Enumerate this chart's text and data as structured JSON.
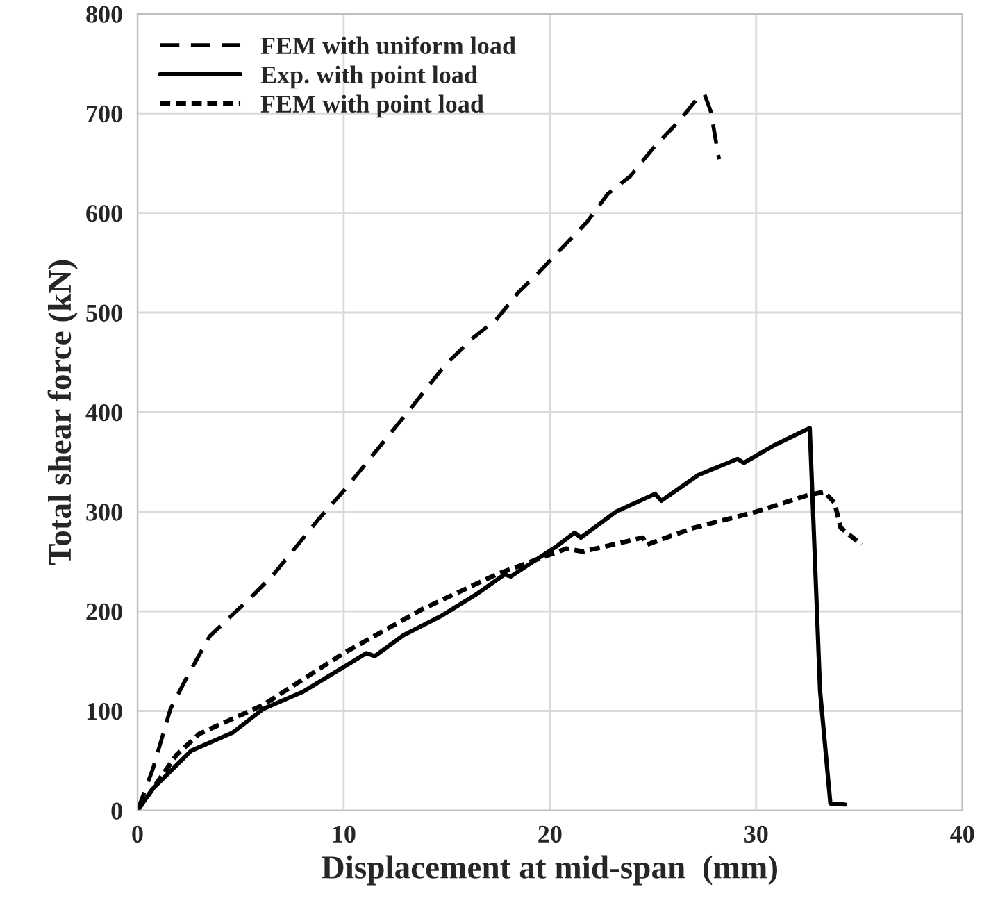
{
  "chart_data": {
    "type": "line",
    "xlabel": "Displacement at mid-span  (mm)",
    "ylabel": "Total shear force (kN)",
    "xlim": [
      0,
      40
    ],
    "ylim": [
      0,
      800
    ],
    "xticks": [
      0,
      10,
      20,
      30,
      40
    ],
    "yticks": [
      0,
      100,
      200,
      300,
      400,
      500,
      600,
      700,
      800
    ],
    "grid": true,
    "legend": "top left",
    "marker": "none",
    "series": [
      {
        "name": "FEM with uniform load",
        "color": "#000000",
        "line_style": "dashed",
        "x": [
          0,
          0.75,
          1.6,
          2.4,
          3.5,
          5.5,
          6.6,
          7.7,
          8.8,
          10,
          11.1,
          12.2,
          13.3,
          14.9,
          16.3,
          17.4,
          18.5,
          19.4,
          20.5,
          21.8,
          22.8,
          23.9,
          25,
          26.2,
          27.2,
          27.5,
          27.8,
          28.2
        ],
        "values": [
          0,
          42,
          102,
          134,
          175,
          214,
          237,
          265,
          293,
          321,
          349,
          377,
          405,
          447,
          475,
          493,
          521,
          539,
          563,
          591,
          619,
          637,
          665,
          691,
          716,
          719,
          702,
          654
        ]
      },
      {
        "name": "Exp. with point load",
        "color": "#000000",
        "line_style": "solid",
        "x": [
          0,
          0.75,
          2.6,
          4.6,
          6.1,
          8.0,
          10,
          11.1,
          11.5,
          12.9,
          14.7,
          16.5,
          17.8,
          18.1,
          20.3,
          21.2,
          21.5,
          23.2,
          25.1,
          25.4,
          27.2,
          29.1,
          29.4,
          30.9,
          32.6,
          33.1,
          33.6,
          34.3
        ],
        "values": [
          0,
          22,
          60,
          78,
          102,
          119,
          144,
          158,
          155,
          176,
          195,
          218,
          237,
          235,
          265,
          279,
          274,
          300,
          318,
          311,
          337,
          353,
          349,
          367,
          384,
          120,
          7,
          6
        ]
      },
      {
        "name": "FEM with point load",
        "color": "#000000",
        "line_style": "dotted",
        "x": [
          0,
          1.9,
          3.0,
          6.1,
          10,
          13.8,
          17.4,
          20.8,
          21.6,
          24.5,
          24.7,
          27,
          30,
          32.4,
          33.3,
          33.8,
          34.1,
          35.1
        ],
        "values": [
          0,
          56,
          77,
          106,
          158,
          202,
          237,
          263,
          260,
          274,
          267,
          284,
          300,
          316,
          320,
          309,
          284,
          267
        ]
      }
    ]
  }
}
